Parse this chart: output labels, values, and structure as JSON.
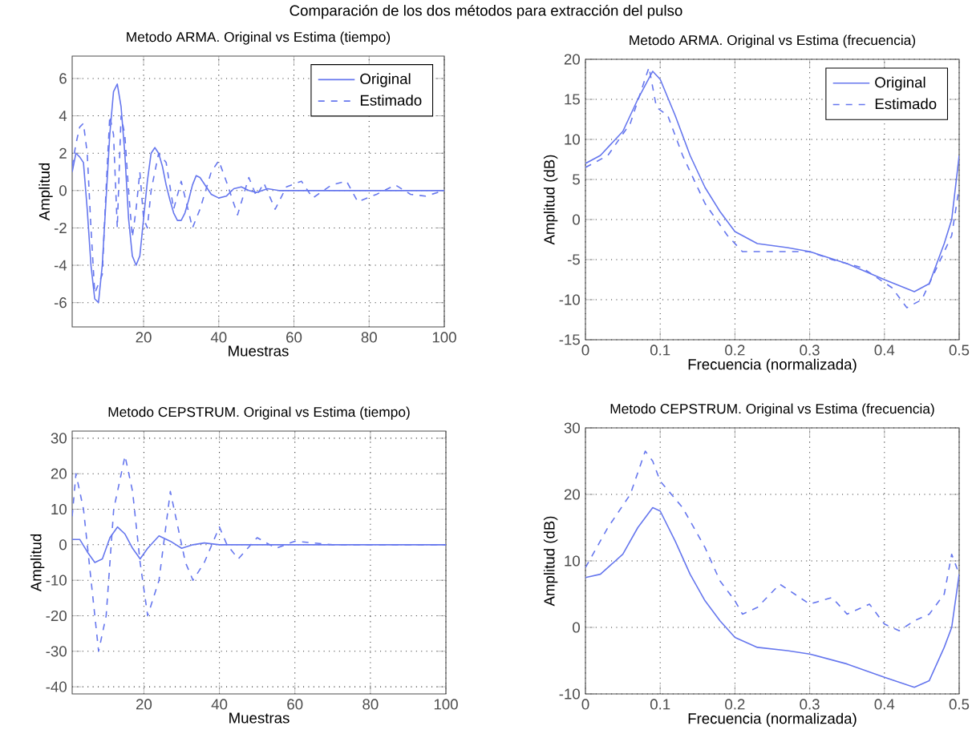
{
  "chart_data": [
    {
      "type": "line",
      "title": "Metodo ARMA. Original vs Estima (tiempo)",
      "xlabel": "Muestras",
      "ylabel": "Amplitud",
      "annotations": [
        "Comparación de los dos métodos para extracción del pulso"
      ],
      "xlim": [
        1,
        100
      ],
      "ylim": [
        -7.3,
        7.2
      ],
      "xticks": [
        20,
        40,
        60,
        80,
        100
      ],
      "yticks": [
        -6,
        -4,
        -2,
        0,
        2,
        4,
        6
      ],
      "grid": true,
      "legend": "top right",
      "series": [
        {
          "name": "Original",
          "color": "#6677ee",
          "line_style": "solid",
          "x": [
            1,
            2,
            3,
            4,
            5,
            6,
            7,
            8,
            9,
            10,
            11,
            12,
            13,
            14,
            15,
            16,
            17,
            18,
            19,
            20,
            21,
            22,
            23,
            24,
            25,
            26,
            27,
            28,
            29,
            30,
            31,
            32,
            33,
            34,
            35,
            36,
            38,
            40,
            42,
            44,
            46,
            48,
            50,
            53,
            56,
            60,
            65,
            70,
            80,
            90,
            100
          ],
          "values": [
            1,
            2,
            1.8,
            1.5,
            -1,
            -4,
            -5.8,
            -6,
            -4,
            -0.5,
            3,
            5.3,
            5.7,
            4.5,
            2,
            -1.5,
            -3.5,
            -4,
            -3.5,
            -1.5,
            0.5,
            2,
            2.3,
            2,
            1.3,
            0.3,
            -0.5,
            -1.2,
            -1.6,
            -1.6,
            -1.2,
            -0.5,
            0.3,
            0.8,
            0.7,
            0.4,
            -0.2,
            -0.4,
            -0.3,
            0.1,
            0.2,
            0,
            -0.1,
            0.1,
            0,
            0,
            0,
            0,
            0,
            0,
            0
          ]
        },
        {
          "name": "Estimado",
          "color": "#6677ee",
          "line_style": "dashed",
          "x": [
            1,
            2,
            3,
            4,
            5,
            6,
            7,
            8,
            9,
            10,
            11,
            12,
            13,
            14,
            15,
            16,
            17,
            18,
            19,
            20,
            21,
            22,
            24,
            26,
            28,
            30,
            33,
            35,
            38,
            40,
            42,
            45,
            48,
            50,
            52,
            55,
            58,
            62,
            65,
            70,
            74,
            77,
            82,
            87,
            91,
            95,
            100
          ],
          "values": [
            1.3,
            2.5,
            3.4,
            3.6,
            2,
            -2,
            -5.5,
            -5,
            -4.5,
            0,
            4,
            3,
            -2,
            4,
            3,
            0,
            -2.5,
            -1,
            1,
            -1.5,
            -2,
            0,
            2,
            1.5,
            -1,
            0.5,
            -2,
            -1,
            1,
            1.6,
            0.5,
            -1.3,
            0.7,
            -0.3,
            0.4,
            -1,
            0.2,
            0.5,
            -0.4,
            0.3,
            0.5,
            -0.6,
            -0.2,
            0.3,
            -0.2,
            -0.3,
            0
          ]
        }
      ]
    },
    {
      "type": "line",
      "title": "Metodo ARMA. Original vs Estima (frecuencia)",
      "xlabel": "Frecuencia (normalizada)",
      "ylabel": "Amplitud (dB)",
      "xlim": [
        0,
        0.5
      ],
      "ylim": [
        -15,
        20
      ],
      "xticks": [
        0,
        0.1,
        0.2,
        0.3,
        0.4,
        0.5
      ],
      "yticks": [
        -15,
        -10,
        -5,
        0,
        5,
        10,
        15,
        20
      ],
      "grid": true,
      "legend": "top right",
      "series": [
        {
          "name": "Original",
          "color": "#6677ee",
          "line_style": "solid",
          "x": [
            0,
            0.02,
            0.05,
            0.07,
            0.09,
            0.1,
            0.12,
            0.14,
            0.16,
            0.18,
            0.2,
            0.23,
            0.27,
            0.3,
            0.35,
            0.4,
            0.44,
            0.46,
            0.48,
            0.49,
            0.5
          ],
          "values": [
            7,
            8,
            11,
            15,
            18.5,
            17.5,
            13,
            8,
            4,
            1,
            -1.5,
            -3,
            -3.5,
            -4,
            -5.5,
            -7.5,
            -9,
            -8,
            -3,
            0,
            8
          ]
        },
        {
          "name": "Estimado",
          "color": "#6677ee",
          "line_style": "dashed",
          "x": [
            0,
            0.03,
            0.06,
            0.085,
            0.095,
            0.11,
            0.13,
            0.16,
            0.19,
            0.21,
            0.25,
            0.3,
            0.33,
            0.37,
            0.41,
            0.43,
            0.45,
            0.47,
            0.49,
            0.5
          ],
          "values": [
            6.5,
            8,
            12,
            19,
            14,
            13,
            8,
            2,
            -2,
            -4,
            -4,
            -4,
            -5,
            -6,
            -8.5,
            -11,
            -10,
            -6,
            -2,
            4
          ]
        }
      ]
    },
    {
      "type": "line",
      "title": "Metodo CEPSTRUM. Original vs Estima (tiempo)",
      "xlabel": "Muestras",
      "ylabel": "Amplitud",
      "xlim": [
        1,
        100
      ],
      "ylim": [
        -42,
        32
      ],
      "xticks": [
        20,
        40,
        60,
        80,
        100
      ],
      "yticks": [
        -40,
        -30,
        -20,
        -10,
        0,
        10,
        20,
        30
      ],
      "grid": true,
      "series": [
        {
          "color": "#6677ee",
          "line_style": "solid",
          "x": [
            1,
            3,
            5,
            7,
            9,
            11,
            13,
            15,
            17,
            19,
            21,
            24,
            27,
            30,
            33,
            36,
            40,
            45,
            50,
            60,
            70,
            80,
            90,
            100
          ],
          "values": [
            1.5,
            1.5,
            -2,
            -5,
            -4,
            2,
            5,
            3,
            -1,
            -4,
            -1,
            2.5,
            1,
            -1,
            0,
            0.5,
            0,
            0,
            0,
            0,
            0,
            0,
            0,
            0
          ]
        },
        {
          "color": "#6677ee",
          "line_style": "dashed",
          "x": [
            1,
            2,
            4,
            6,
            8,
            10,
            12,
            15,
            17,
            19,
            21,
            24,
            27,
            29,
            31,
            33,
            36,
            40,
            42,
            45,
            50,
            55,
            60,
            70,
            80,
            90,
            100
          ],
          "values": [
            8,
            20,
            10,
            -10,
            -30,
            -20,
            10,
            25,
            15,
            -5,
            -20,
            -10,
            15,
            5,
            -5,
            -10,
            -5,
            5,
            0,
            -4,
            2,
            -1,
            1,
            0,
            0,
            0,
            0
          ]
        }
      ]
    },
    {
      "type": "line",
      "title": "Metodo CEPSTRUM. Original vs Estima (frecuencia)",
      "xlabel": "Frecuencia (normalizada)",
      "ylabel": "Amplitud (dB)",
      "xlim": [
        0,
        0.5
      ],
      "ylim": [
        -10,
        30
      ],
      "xticks": [
        0,
        0.1,
        0.2,
        0.3,
        0.4,
        0.5
      ],
      "yticks": [
        -10,
        0,
        10,
        20,
        30
      ],
      "grid": true,
      "series": [
        {
          "color": "#6677ee",
          "line_style": "solid",
          "x": [
            0,
            0.02,
            0.05,
            0.07,
            0.09,
            0.1,
            0.12,
            0.14,
            0.16,
            0.18,
            0.2,
            0.23,
            0.27,
            0.3,
            0.35,
            0.4,
            0.44,
            0.46,
            0.48,
            0.49,
            0.5
          ],
          "values": [
            7.5,
            8,
            11,
            15,
            18,
            17.5,
            13,
            8,
            4,
            1,
            -1.5,
            -3,
            -3.5,
            -4,
            -5.5,
            -7.5,
            -9,
            -8,
            -3,
            0,
            8
          ]
        },
        {
          "color": "#6677ee",
          "line_style": "dashed",
          "x": [
            0,
            0.03,
            0.06,
            0.08,
            0.09,
            0.1,
            0.13,
            0.16,
            0.18,
            0.2,
            0.21,
            0.23,
            0.26,
            0.28,
            0.3,
            0.33,
            0.35,
            0.38,
            0.4,
            0.42,
            0.44,
            0.46,
            0.48,
            0.49,
            0.5
          ],
          "values": [
            9,
            15,
            20,
            26.5,
            25,
            22,
            18,
            12,
            7,
            4,
            2,
            3,
            6.5,
            5,
            3.5,
            4.5,
            2,
            3.5,
            0.5,
            -0.5,
            1,
            2,
            5,
            11,
            8
          ]
        }
      ]
    }
  ]
}
